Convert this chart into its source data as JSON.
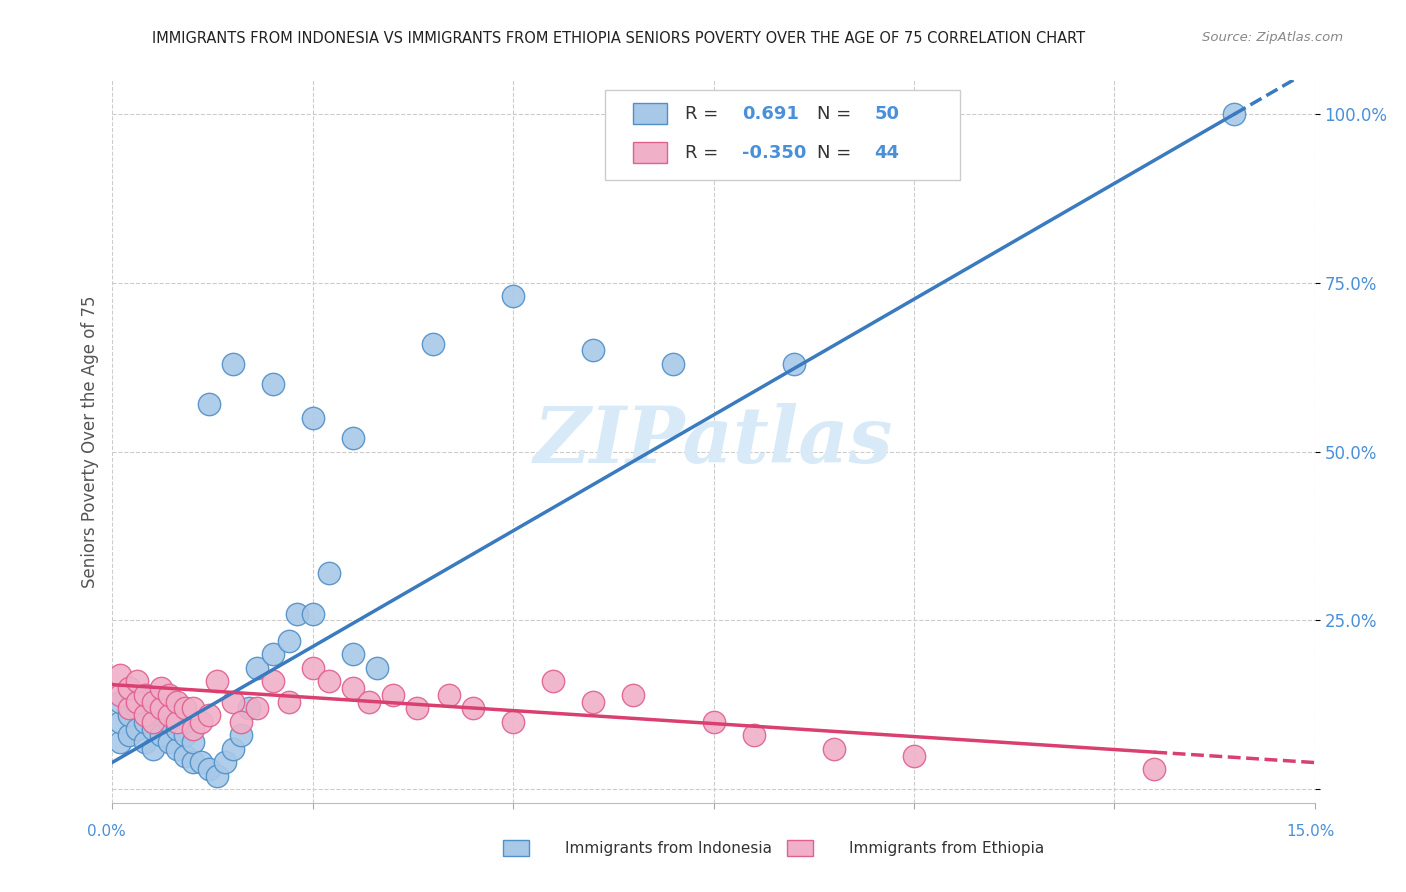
{
  "title": "IMMIGRANTS FROM INDONESIA VS IMMIGRANTS FROM ETHIOPIA SENIORS POVERTY OVER THE AGE OF 75 CORRELATION CHART",
  "source": "Source: ZipAtlas.com",
  "ylabel": "Seniors Poverty Over the Age of 75",
  "xlim": [
    0.0,
    0.15
  ],
  "ylim": [
    -0.02,
    1.05
  ],
  "yticks": [
    0.0,
    0.25,
    0.5,
    0.75,
    1.0
  ],
  "ytick_labels": [
    "",
    "25.0%",
    "50.0%",
    "75.0%",
    "100.0%"
  ],
  "xticks": [
    0.0,
    0.025,
    0.05,
    0.075,
    0.1,
    0.125,
    0.15
  ],
  "r_indonesia": 0.691,
  "n_indonesia": 50,
  "r_ethiopia": -0.35,
  "n_ethiopia": 44,
  "color_indonesia": "#a8c8e8",
  "color_ethiopia": "#f0b0c8",
  "color_indonesia_line": "#3a7abf",
  "color_ethiopia_line": "#d94070",
  "color_indonesia_edge": "#5090c8",
  "color_ethiopia_edge": "#e06090",
  "watermark_color": "#d8eaf8",
  "background_color": "#ffffff",
  "grid_color": "#cccccc",
  "title_color": "#222222",
  "axis_right_color": "#4a90d9",
  "axis_label_color": "#555555",
  "indonesia_x": [
    0.001,
    0.001,
    0.001,
    0.002,
    0.002,
    0.002,
    0.003,
    0.003,
    0.004,
    0.004,
    0.004,
    0.005,
    0.005,
    0.005,
    0.006,
    0.006,
    0.007,
    0.007,
    0.008,
    0.008,
    0.009,
    0.009,
    0.01,
    0.01,
    0.011,
    0.012,
    0.013,
    0.014,
    0.015,
    0.016,
    0.017,
    0.018,
    0.02,
    0.022,
    0.023,
    0.025,
    0.027,
    0.03,
    0.033,
    0.012,
    0.015,
    0.02,
    0.025,
    0.03,
    0.04,
    0.05,
    0.06,
    0.07,
    0.085,
    0.14
  ],
  "indonesia_y": [
    0.07,
    0.1,
    0.13,
    0.08,
    0.11,
    0.15,
    0.09,
    0.12,
    0.07,
    0.1,
    0.14,
    0.06,
    0.09,
    0.13,
    0.08,
    0.11,
    0.07,
    0.1,
    0.06,
    0.09,
    0.05,
    0.08,
    0.04,
    0.07,
    0.04,
    0.03,
    0.02,
    0.04,
    0.06,
    0.08,
    0.12,
    0.18,
    0.2,
    0.22,
    0.26,
    0.26,
    0.32,
    0.2,
    0.18,
    0.57,
    0.63,
    0.6,
    0.55,
    0.52,
    0.66,
    0.73,
    0.65,
    0.63,
    0.63,
    1.0
  ],
  "ethiopia_x": [
    0.001,
    0.001,
    0.002,
    0.002,
    0.003,
    0.003,
    0.004,
    0.004,
    0.005,
    0.005,
    0.006,
    0.006,
    0.007,
    0.007,
    0.008,
    0.008,
    0.009,
    0.01,
    0.01,
    0.011,
    0.012,
    0.013,
    0.015,
    0.016,
    0.018,
    0.02,
    0.022,
    0.025,
    0.027,
    0.03,
    0.032,
    0.035,
    0.038,
    0.042,
    0.045,
    0.05,
    0.055,
    0.06,
    0.065,
    0.075,
    0.08,
    0.09,
    0.1,
    0.13
  ],
  "ethiopia_y": [
    0.14,
    0.17,
    0.12,
    0.15,
    0.13,
    0.16,
    0.11,
    0.14,
    0.1,
    0.13,
    0.12,
    0.15,
    0.11,
    0.14,
    0.1,
    0.13,
    0.12,
    0.09,
    0.12,
    0.1,
    0.11,
    0.16,
    0.13,
    0.1,
    0.12,
    0.16,
    0.13,
    0.18,
    0.16,
    0.15,
    0.13,
    0.14,
    0.12,
    0.14,
    0.12,
    0.1,
    0.16,
    0.13,
    0.14,
    0.1,
    0.08,
    0.06,
    0.05,
    0.03
  ],
  "indo_line_x0": 0.0,
  "indo_line_y0": 0.04,
  "indo_line_x1": 0.14,
  "indo_line_y1": 1.0,
  "eth_line_x0": 0.0,
  "eth_line_y0": 0.155,
  "eth_line_x1": 0.13,
  "eth_line_y1": 0.055
}
